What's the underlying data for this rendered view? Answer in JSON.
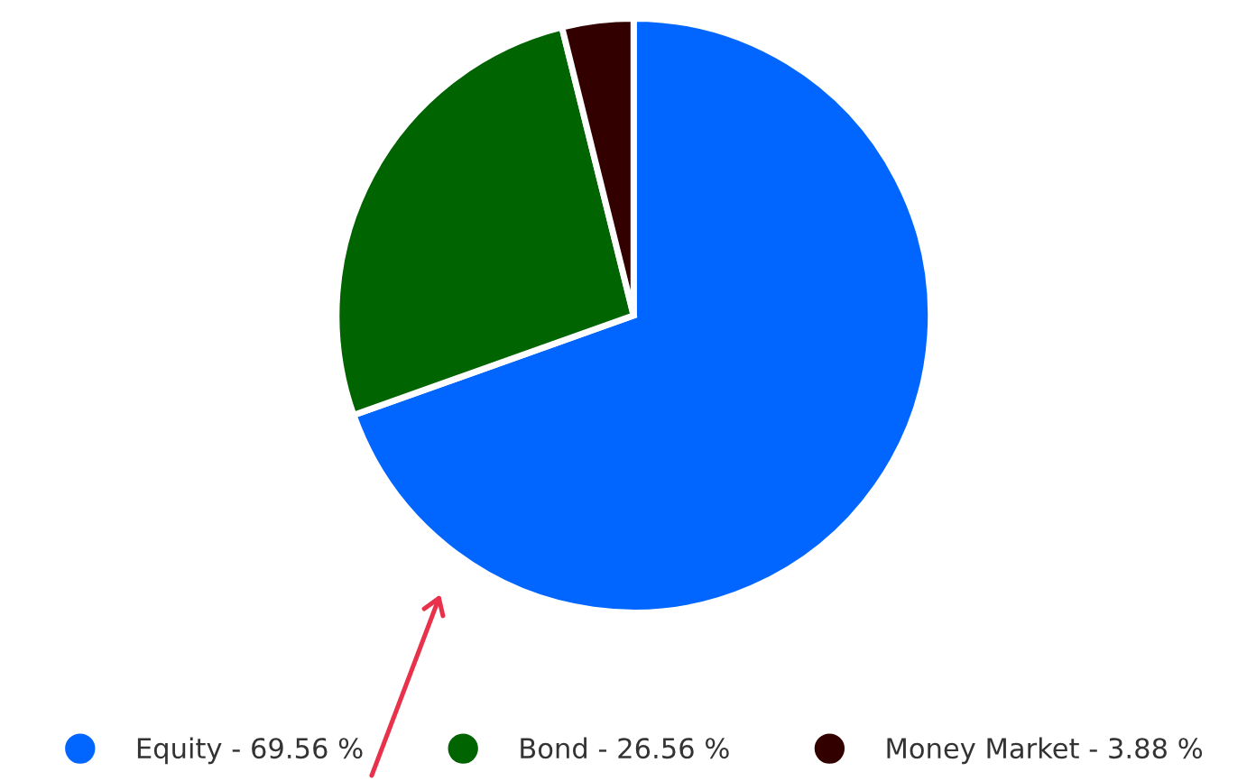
{
  "chart_data": {
    "type": "pie",
    "categories": [
      "Equity - 69.56 %",
      "Bond - 26.56 %",
      "Money Market - 3.88 %"
    ],
    "values": [
      69.56,
      26.56,
      3.88
    ],
    "colors": [
      "#0066ff",
      "#006400",
      "#330000"
    ],
    "legend": "bottom"
  }
}
